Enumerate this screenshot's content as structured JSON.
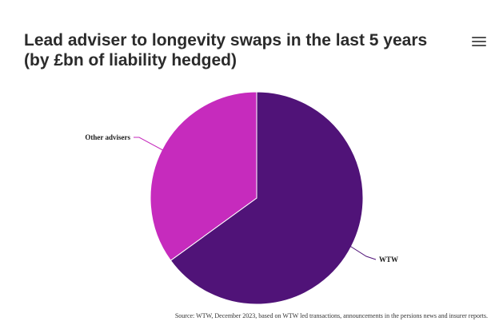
{
  "chart_data": {
    "type": "pie",
    "title_line1": "Lead adviser to longevity swaps in the last 5 years",
    "title_line2": "(by £bn of liability hedged)",
    "slices": [
      {
        "name": "WTW",
        "value": 65,
        "color": "#501378"
      },
      {
        "name": "Other advisers",
        "value": 35,
        "color": "#c62bbd"
      }
    ],
    "source": "Source: WTW, December 2023, based on WTW led transactions, announcements in the persions news and insurer reports.",
    "menu_icon": "hamburger-menu-icon"
  }
}
